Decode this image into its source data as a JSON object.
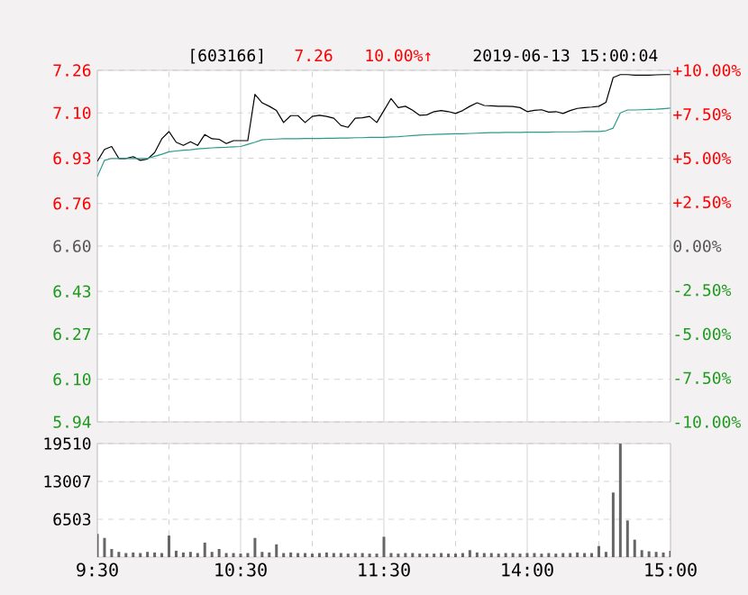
{
  "chart_data": [
    {
      "type": "line",
      "title": "[603166]",
      "annotations": [
        "7.26",
        "10.00%↑",
        "2019-06-13 15:00:04"
      ],
      "categories": [
        null,
        null,
        null,
        null,
        null,
        null,
        null,
        null,
        null,
        null,
        null,
        null,
        null,
        null,
        null,
        null,
        null,
        null,
        null,
        null,
        null,
        null,
        null,
        null,
        null,
        null,
        null,
        null,
        null,
        null,
        null,
        null,
        null,
        null,
        null,
        null,
        null,
        null,
        null,
        null,
        null,
        null,
        null,
        null,
        null,
        null,
        null,
        null,
        null,
        null,
        null,
        null,
        null,
        null,
        null,
        null,
        null,
        null,
        null,
        null,
        null,
        null,
        null,
        null,
        null,
        null,
        null,
        null,
        null,
        null,
        null,
        null,
        null,
        null,
        null,
        null,
        null,
        null,
        null,
        null,
        null
      ],
      "ylim": [
        5.94,
        7.26
      ],
      "yticks": [
        5.94,
        {
          "value": 6.1,
          "label": "6.10"
        },
        6.27,
        6.43,
        {
          "value": 6.6,
          "label": "6.60"
        },
        6.76,
        6.93,
        {
          "value": 7.1,
          "label": "7.10"
        },
        7.26
      ],
      "y2lim": [
        -10,
        10
      ],
      "y2ticks": [
        {
          "value": -10,
          "label": "-10.00%"
        },
        {
          "value": -7.5,
          "label": "-7.50%"
        },
        {
          "value": -5,
          "label": "-5.00%"
        },
        {
          "value": -2.5,
          "label": "-2.50%"
        },
        {
          "value": 0,
          "label": "0.00%"
        },
        {
          "value": 2.5,
          "label": "+2.50%"
        },
        {
          "value": 5,
          "label": "+5.00%"
        },
        {
          "value": 7.5,
          "label": "+7.50%"
        },
        {
          "value": 10,
          "label": "+10.00%"
        }
      ],
      "grid": true,
      "tick_labels": "y",
      "series": [
        {
          "color": "#000000",
          "values": [
            6.918,
            6.963,
            6.974,
            6.929,
            6.929,
            6.936,
            6.922,
            6.927,
            6.951,
            7.003,
            7.03,
            6.99,
            6.978,
            6.992,
            6.978,
            7.019,
            7.003,
            7.001,
            6.985,
            6.996,
            6.996,
            6.996,
            7.17,
            7.138,
            7.125,
            7.109,
            7.064,
            7.09,
            7.09,
            7.064,
            7.087,
            7.091,
            7.087,
            7.08,
            7.053,
            7.046,
            7.08,
            7.082,
            7.087,
            7.064,
            7.109,
            7.154,
            7.12,
            7.125,
            7.11,
            7.091,
            7.093,
            7.105,
            7.109,
            7.105,
            7.098,
            7.109,
            7.125,
            7.138,
            7.128,
            7.127,
            7.125,
            7.125,
            7.124,
            7.12,
            7.105,
            7.11,
            7.112,
            7.103,
            7.105,
            7.098,
            7.109,
            7.117,
            7.12,
            7.122,
            7.125,
            7.14,
            7.233,
            7.244,
            7.244,
            7.242,
            7.242,
            7.242,
            7.243,
            7.244,
            7.244
          ]
        },
        {
          "color": "#2a9a8a",
          "values": [
            6.861,
            6.922,
            6.929,
            6.929,
            6.929,
            6.929,
            6.929,
            6.929,
            6.937,
            6.945,
            6.954,
            6.957,
            6.96,
            6.962,
            6.965,
            6.967,
            6.969,
            6.97,
            6.971,
            6.973,
            6.974,
            6.982,
            6.99,
            6.999,
            7.001,
            7.002,
            7.003,
            7.003,
            7.003,
            7.004,
            7.004,
            7.004,
            7.005,
            7.005,
            7.006,
            7.006,
            7.007,
            7.007,
            7.008,
            7.008,
            7.008,
            7.01,
            7.011,
            7.013,
            7.015,
            7.017,
            7.018,
            7.019,
            7.02,
            7.021,
            7.022,
            7.022,
            7.023,
            7.024,
            7.025,
            7.026,
            7.026,
            7.027,
            7.027,
            7.027,
            7.028,
            7.028,
            7.028,
            7.028,
            7.029,
            7.029,
            7.029,
            7.029,
            7.03,
            7.03,
            7.03,
            7.033,
            7.043,
            7.1,
            7.111,
            7.111,
            7.112,
            7.113,
            7.114,
            7.116,
            7.118
          ]
        }
      ]
    },
    {
      "type": "bar",
      "categories": [
        "9:30",
        null,
        null,
        null,
        null,
        null,
        null,
        null,
        null,
        null,
        null,
        null,
        null,
        null,
        null,
        null,
        null,
        null,
        null,
        null,
        "10:30",
        null,
        null,
        null,
        null,
        null,
        null,
        null,
        null,
        null,
        null,
        null,
        null,
        null,
        null,
        null,
        null,
        null,
        null,
        null,
        "11:30",
        null,
        null,
        null,
        null,
        null,
        null,
        null,
        null,
        null,
        null,
        null,
        null,
        null,
        null,
        null,
        null,
        null,
        null,
        null,
        "14:00",
        null,
        null,
        null,
        null,
        null,
        null,
        null,
        null,
        null,
        null,
        null,
        null,
        null,
        null,
        null,
        null,
        null,
        null,
        null,
        "15:00"
      ],
      "ylim": [
        0,
        19510
      ],
      "yticks": [
        6503,
        13007,
        19510
      ],
      "grid": true,
      "series": [
        {
          "color": "#666666",
          "values": [
            4000,
            3300,
            1400,
            900,
            700,
            800,
            700,
            900,
            800,
            700,
            3700,
            1100,
            800,
            900,
            700,
            2500,
            900,
            1400,
            700,
            700,
            600,
            700,
            3300,
            900,
            800,
            2200,
            700,
            800,
            700,
            700,
            600,
            700,
            800,
            700,
            700,
            600,
            700,
            700,
            600,
            600,
            3500,
            700,
            600,
            700,
            700,
            600,
            600,
            600,
            700,
            600,
            600,
            700,
            1200,
            800,
            700,
            700,
            600,
            700,
            700,
            600,
            700,
            700,
            600,
            700,
            600,
            700,
            700,
            800,
            700,
            700,
            1900,
            900,
            11100,
            19500,
            6300,
            3000,
            1200,
            1000,
            900,
            800,
            1100
          ]
        }
      ]
    }
  ]
}
